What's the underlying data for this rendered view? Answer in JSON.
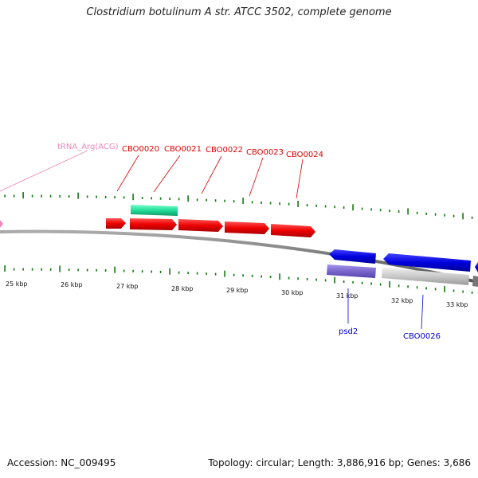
{
  "title": "Clostridium botulinum A str. ATCC 3502, complete genome",
  "footer": {
    "accession": "Accession: NC_009495",
    "summary": "Topology: circular; Length: 3,886,916 bp; Genes: 3,686"
  },
  "colors": {
    "cds_forward": "#ee0000",
    "cds_reverse": "#0000dd",
    "rna": "#22dd99",
    "trna_label": "#ee88bb",
    "rev_secondary_1": "#7a66cc",
    "rev_secondary_2": "#c8c8c8",
    "backbone": "#777777",
    "tick": "#117711"
  },
  "scale": {
    "kbp_labels": [
      "25 kbp",
      "26 kbp",
      "27 kbp",
      "28 kbp",
      "29 kbp",
      "30 kbp",
      "31 kbp",
      "32 kbp",
      "33 kbp"
    ]
  },
  "features": {
    "forward_labels": [
      "CBO0020",
      "CBO0021",
      "CBO0022",
      "CBO0023",
      "CBO0024"
    ],
    "trna_label": "tRNA_Arg(ACG)",
    "reverse_labels": [
      "psd2",
      "CBO0026"
    ]
  }
}
